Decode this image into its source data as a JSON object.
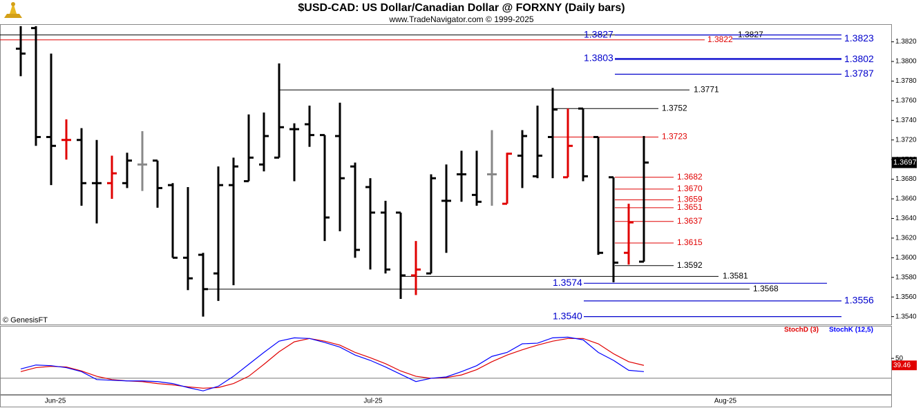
{
  "chart_data": [
    {
      "type": "ohlc",
      "title": "$USD-CAD:  US Dollar/Canadian Dollar @ FORXNY  (Daily bars)",
      "subtitle": "www.TradeNavigator.com © 1999-2025",
      "watermark": "© GenesisFT",
      "x_labels": [
        "Jun-25",
        "Jul-25",
        "Aug-25"
      ],
      "open": [
        1.3813,
        1.3834,
        1.3723,
        1.372,
        1.372,
        1.3676,
        1.3676,
        1.3676,
        1.3695,
        1.3699,
        1.3674,
        1.36,
        1.3603,
        1.3584,
        1.3674,
        1.3678,
        1.3695,
        1.3702,
        1.3731,
        1.3736,
        1.3725,
        1.3724,
        1.3693,
        1.3672,
        1.3646,
        1.3646,
        1.3582,
        1.3584,
        1.3658,
        1.3685,
        1.3664,
        1.3685,
        1.3655,
        1.3704,
        1.3683,
        1.3723,
        1.3682,
        1.3752,
        1.3723,
        1.3682,
        1.3605,
        1.3596
      ],
      "high": [
        1.3836,
        1.3836,
        1.3808,
        1.3741,
        1.3732,
        1.372,
        1.3704,
        1.3707,
        1.3729,
        1.3699,
        1.3676,
        1.3672,
        1.3605,
        1.3693,
        1.3702,
        1.3746,
        1.3748,
        1.3798,
        1.3737,
        1.3755,
        1.3725,
        1.3758,
        1.3697,
        1.3681,
        1.3658,
        1.3646,
        1.3617,
        1.3685,
        1.3695,
        1.3709,
        1.3709,
        1.373,
        1.3707,
        1.373,
        1.3755,
        1.3773,
        1.3752,
        1.3752,
        1.3723,
        1.3682,
        1.3655,
        1.3724
      ],
      "low": [
        1.3785,
        1.3714,
        1.3674,
        1.37,
        1.3653,
        1.3635,
        1.366,
        1.3671,
        1.3668,
        1.3651,
        1.36,
        1.3567,
        1.354,
        1.3556,
        1.3572,
        1.3678,
        1.3688,
        1.3702,
        1.3678,
        1.3713,
        1.3617,
        1.3627,
        1.36,
        1.3588,
        1.3584,
        1.3558,
        1.3562,
        1.3584,
        1.3605,
        1.3657,
        1.3653,
        1.3653,
        1.3655,
        1.3671,
        1.3681,
        1.3681,
        1.3682,
        1.3678,
        1.3603,
        1.3575,
        1.3593,
        1.3596
      ],
      "close": [
        1.3808,
        1.3723,
        1.3714,
        1.372,
        1.3676,
        1.3676,
        1.3686,
        1.3699,
        1.3695,
        1.3671,
        1.36,
        1.3579,
        1.3568,
        1.3674,
        1.3693,
        1.3702,
        1.3724,
        1.3733,
        1.3731,
        1.3725,
        1.3641,
        1.3681,
        1.3608,
        1.3646,
        1.3588,
        1.3582,
        1.3588,
        1.3681,
        1.3658,
        1.3685,
        1.3657,
        1.3685,
        1.3706,
        1.3724,
        1.3704,
        1.3751,
        1.3714,
        1.3683,
        1.3605,
        1.3595,
        1.3636,
        1.3697
      ],
      "bar_colors": [
        "#000000",
        "#000000",
        "#000000",
        "#e00000",
        "#000000",
        "#000000",
        "#e00000",
        "#000000",
        "#888888",
        "#000000",
        "#000000",
        "#000000",
        "#000000",
        "#000000",
        "#000000",
        "#000000",
        "#000000",
        "#000000",
        "#000000",
        "#000000",
        "#000000",
        "#000000",
        "#000000",
        "#000000",
        "#000000",
        "#000000",
        "#e00000",
        "#000000",
        "#000000",
        "#000000",
        "#000000",
        "#888888",
        "#e00000",
        "#000000",
        "#000000",
        "#000000",
        "#e00000",
        "#000000",
        "#000000",
        "#000000",
        "#e00000",
        "#000000"
      ],
      "ylim": [
        1.3532,
        1.3838
      ],
      "yticks": [
        {
          "value": 1.354,
          "label": "1.3540"
        },
        {
          "value": 1.356,
          "label": "1.3560"
        },
        {
          "value": 1.358,
          "label": "1.3580"
        },
        {
          "value": 1.36,
          "label": "1.3600"
        },
        {
          "value": 1.362,
          "label": "1.3620"
        },
        {
          "value": 1.364,
          "label": "1.3640"
        },
        {
          "value": 1.366,
          "label": "1.3660"
        },
        {
          "value": 1.368,
          "label": "1.3680"
        },
        {
          "value": 1.37,
          "label": "1.3700"
        },
        {
          "value": 1.372,
          "label": "1.3720"
        },
        {
          "value": 1.374,
          "label": "1.3740"
        },
        {
          "value": 1.376,
          "label": "1.3760"
        },
        {
          "value": 1.378,
          "label": "1.3780"
        },
        {
          "value": 1.38,
          "label": "1.3800"
        },
        {
          "value": 1.382,
          "label": "1.3820"
        }
      ],
      "levels": [
        {
          "value": 1.3827,
          "color": "#000000"
        },
        {
          "value": 1.3827,
          "color": "#0000cc"
        },
        {
          "value": 1.3822,
          "color": "#e00000"
        },
        {
          "value": 1.3823,
          "color": "#0000cc"
        },
        {
          "value": 1.3803,
          "color": "#0000cc"
        },
        {
          "value": 1.3802,
          "color": "#0000cc"
        },
        {
          "value": 1.3787,
          "color": "#0000cc"
        },
        {
          "value": 1.3771,
          "color": "#000000"
        },
        {
          "value": 1.3752,
          "color": "#000000"
        },
        {
          "value": 1.3723,
          "color": "#e00000"
        },
        {
          "value": 1.3682,
          "color": "#e00000"
        },
        {
          "value": 1.367,
          "label": "1.3670",
          "color": "#e00000"
        },
        {
          "value": 1.3659,
          "color": "#e00000"
        },
        {
          "value": 1.3651,
          "color": "#e00000"
        },
        {
          "value": 1.3637,
          "color": "#e00000"
        },
        {
          "value": 1.3615,
          "color": "#e00000"
        },
        {
          "value": 1.3592,
          "color": "#000000"
        },
        {
          "value": 1.3581,
          "color": "#000000"
        },
        {
          "value": 1.3574,
          "color": "#0000cc"
        },
        {
          "value": 1.3568,
          "color": "#000000"
        },
        {
          "value": 1.3556,
          "color": "#0000cc"
        },
        {
          "value": 1.354,
          "label": "1.3540",
          "color": "#0000cc"
        }
      ]
    },
    {
      "type": "line",
      "series": [
        {
          "name": "StochD (3)",
          "color": "#e00000",
          "values": [
            30,
            36,
            38,
            37,
            31,
            23,
            18,
            16,
            15,
            12,
            10,
            7,
            5,
            6,
            12,
            23,
            41,
            60,
            75,
            80,
            76,
            70,
            59,
            51,
            42,
            31,
            23,
            20,
            21,
            25,
            33,
            45,
            55,
            63,
            70,
            76,
            80,
            80,
            72,
            57,
            45,
            39.46
          ]
        },
        {
          "name": "StochK (12,5)",
          "color": "#0000ff",
          "values": [
            34,
            40,
            39,
            36,
            30,
            18,
            17,
            16,
            16,
            15,
            12,
            6,
            1,
            8,
            23,
            41,
            59,
            76,
            81,
            80,
            74,
            67,
            55,
            47,
            37,
            26,
            15,
            20,
            22,
            30,
            39,
            53,
            59,
            72,
            73,
            81,
            82,
            78,
            59,
            47,
            32,
            30
          ]
        }
      ],
      "ylim": [
        -3,
        97
      ],
      "yticks": [
        50
      ],
      "reference_lines": [
        20
      ]
    }
  ]
}
